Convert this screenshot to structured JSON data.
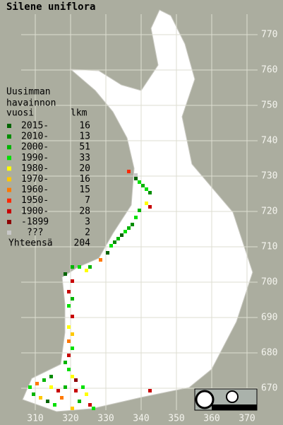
{
  "title": "Silene uniflora",
  "legend": {
    "heading": [
      "Uusimman",
      "havainnon"
    ],
    "columns": [
      "vuosi",
      "lkm"
    ],
    "rows": [
      {
        "label": "2015-",
        "count": 16,
        "color": "#006400"
      },
      {
        "label": "2010-",
        "count": 13,
        "color": "#008c00"
      },
      {
        "label": "2000-",
        "count": 51,
        "color": "#00b400"
      },
      {
        "label": "1990-",
        "count": 33,
        "color": "#00e000"
      },
      {
        "label": "1980-",
        "count": 20,
        "color": "#ffff00"
      },
      {
        "label": "1970-",
        "count": 16,
        "color": "#ffc800"
      },
      {
        "label": "1960-",
        "count": 15,
        "color": "#ff7800"
      },
      {
        "label": "1950-",
        "count": 7,
        "color": "#ff2800"
      },
      {
        "label": "1900-",
        "count": 28,
        "color": "#c80000"
      },
      {
        "label": "-1899",
        "count": 3,
        "color": "#8c0000"
      },
      {
        "label": "???",
        "count": 2,
        "color": "#c8c8c8"
      }
    ],
    "total": {
      "label": "Yhteensä",
      "count": 204
    }
  },
  "x_labels": [
    310,
    320,
    330,
    340,
    350,
    360,
    370
  ],
  "y_labels": [
    670,
    680,
    690,
    700,
    710,
    720,
    730,
    740,
    750,
    760,
    770
  ]
}
